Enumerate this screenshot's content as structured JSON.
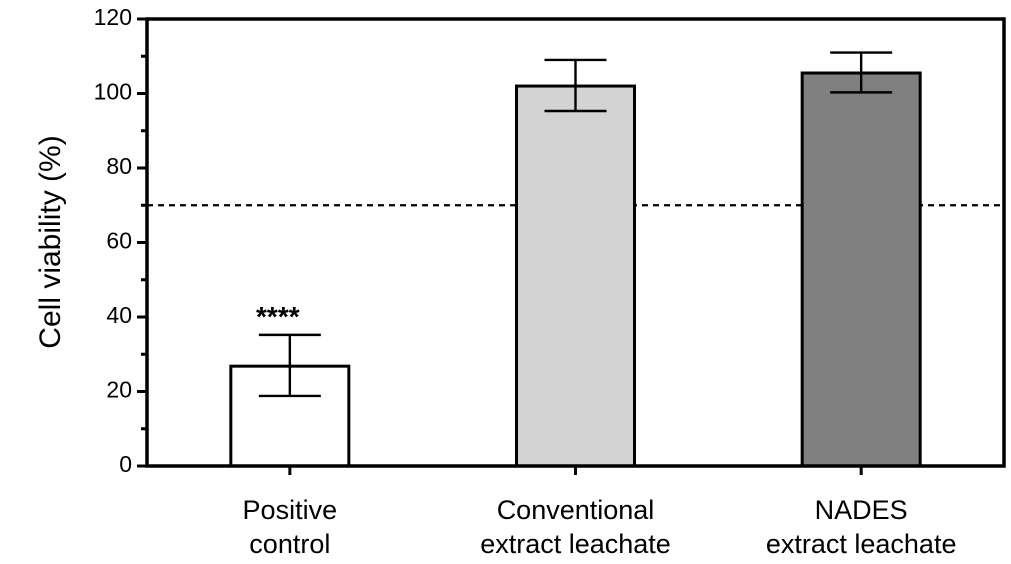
{
  "chart_data": {
    "type": "bar",
    "title": "",
    "xlabel": "",
    "ylabel": "Cell viability (%)",
    "ylim": [
      0,
      120
    ],
    "yticks": [
      0,
      20,
      40,
      60,
      80,
      100,
      120
    ],
    "grid": false,
    "categories": [
      [
        "Positive",
        "control"
      ],
      [
        "Conventional",
        "extract leachate"
      ],
      [
        "NADES",
        "extract leachate"
      ]
    ],
    "values": [
      26.8,
      102,
      105.5
    ],
    "error_low": [
      18.8,
      95.3,
      100.3
    ],
    "error_high": [
      35.2,
      109,
      111
    ],
    "bar_colors": [
      "#ffffff",
      "#d3d3d3",
      "#808080"
    ],
    "reference_line": {
      "value": 70,
      "style": "dashed"
    },
    "annotations": [
      {
        "category_index": 0,
        "text": "****"
      }
    ]
  }
}
